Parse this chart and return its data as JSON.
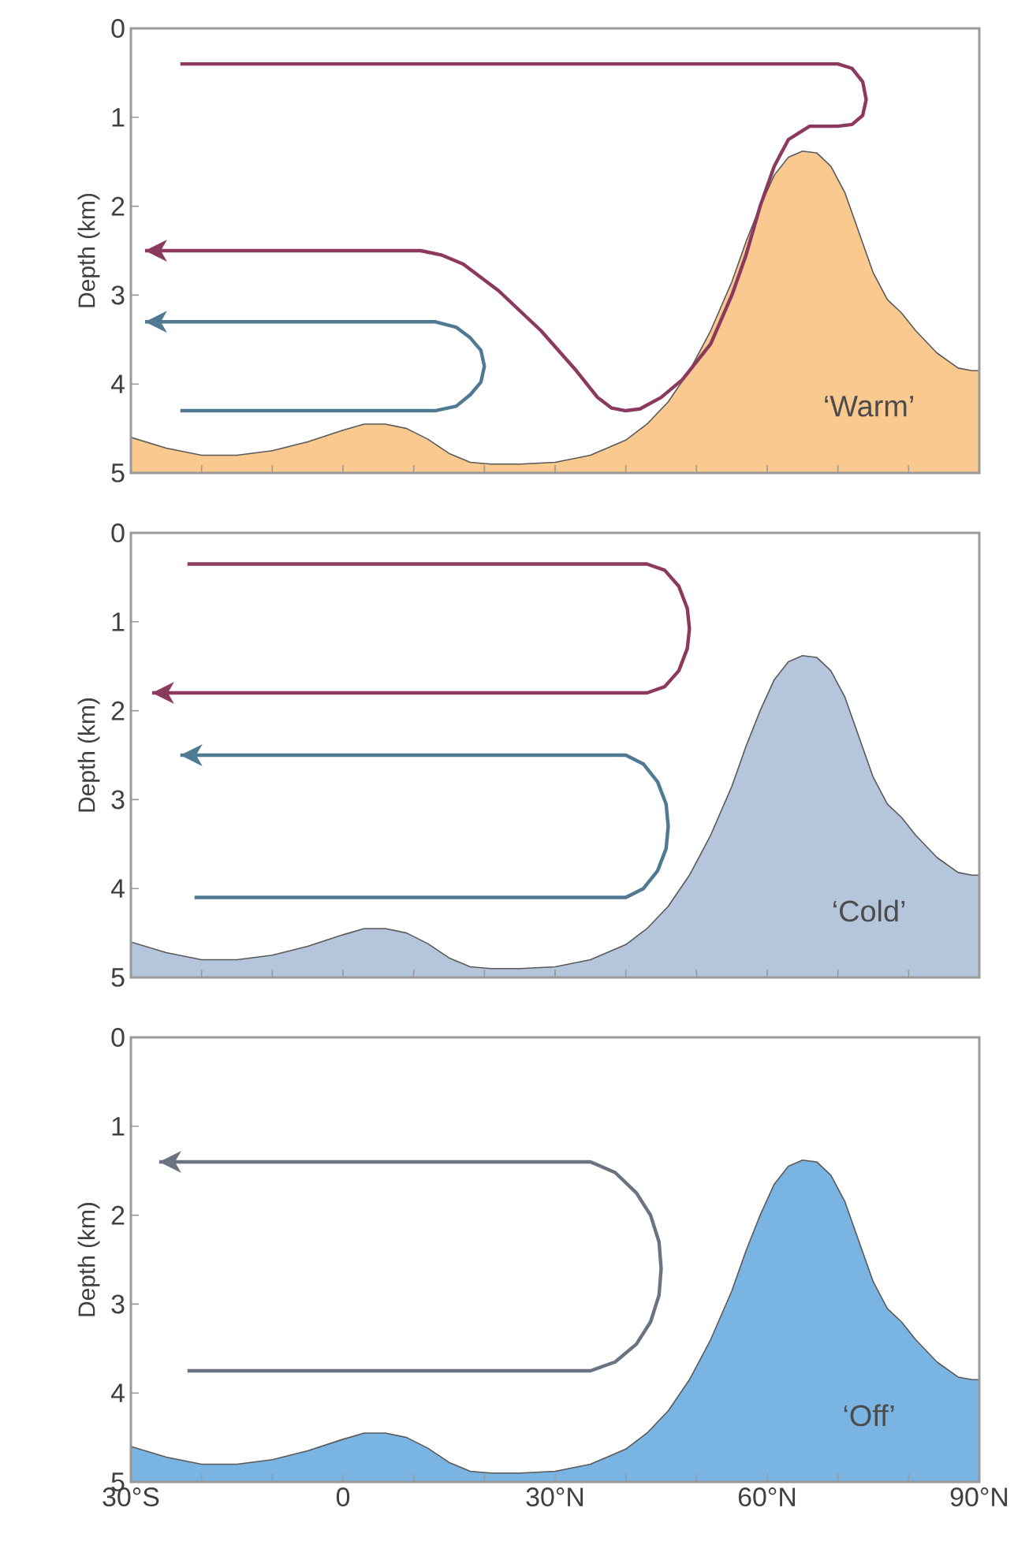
{
  "chart_data": [
    {
      "type": "area",
      "ylabel": "Depth (km)",
      "xlim": [
        -30,
        90
      ],
      "ylim": [
        5,
        0
      ],
      "yticks": [
        0,
        1,
        2,
        3,
        4,
        5
      ],
      "xticks": [
        {
          "value": -30,
          "label": null
        },
        {
          "value": -20,
          "label": null
        },
        {
          "value": -10,
          "label": null
        },
        {
          "value": 0,
          "label": null
        },
        {
          "value": 10,
          "label": null
        },
        {
          "value": 20,
          "label": null
        },
        {
          "value": 30,
          "label": null
        },
        {
          "value": 40,
          "label": null
        },
        {
          "value": 50,
          "label": null
        },
        {
          "value": 60,
          "label": null
        },
        {
          "value": 70,
          "label": null
        },
        {
          "value": 80,
          "label": null
        },
        {
          "value": 90,
          "label": null
        }
      ],
      "tick_labels": "y",
      "annotations": [
        "‘Warm’"
      ],
      "series": [
        {
          "type": "area",
          "color": "#f9c98f",
          "x": [
            -30,
            -30,
            -25,
            -20,
            -15,
            -10,
            -5,
            0,
            3,
            6,
            9,
            12,
            15,
            18,
            21,
            25,
            30,
            35,
            40,
            43,
            46,
            49,
            52,
            55,
            57,
            59,
            61,
            63,
            65,
            67,
            69,
            71,
            73,
            75,
            77,
            79,
            81,
            84,
            87,
            89,
            90,
            90
          ],
          "values": [
            5,
            4.6,
            4.72,
            4.8,
            4.8,
            4.75,
            4.65,
            4.52,
            4.45,
            4.45,
            4.5,
            4.62,
            4.78,
            4.88,
            4.9,
            4.9,
            4.88,
            4.8,
            4.63,
            4.45,
            4.2,
            3.85,
            3.4,
            2.85,
            2.4,
            2.0,
            1.65,
            1.45,
            1.38,
            1.4,
            1.55,
            1.85,
            2.3,
            2.75,
            3.05,
            3.2,
            3.4,
            3.65,
            3.82,
            3.85,
            3.85,
            5
          ]
        },
        {
          "type": "line",
          "color": "#8b3a5e",
          "x": [
            -23,
            70,
            72,
            73.5,
            74,
            73.5,
            72,
            70,
            66,
            63,
            61,
            59,
            57,
            55,
            52,
            48,
            45,
            42,
            40,
            38,
            36,
            33,
            28,
            22,
            17,
            14,
            11,
            6,
            0,
            -28
          ],
          "values": [
            0.4,
            0.4,
            0.45,
            0.6,
            0.8,
            0.98,
            1.08,
            1.1,
            1.1,
            1.25,
            1.55,
            2.0,
            2.55,
            3.0,
            3.55,
            3.95,
            4.15,
            4.28,
            4.3,
            4.27,
            4.15,
            3.85,
            3.4,
            2.95,
            2.65,
            2.55,
            2.5,
            2.5,
            2.5,
            2.5
          ]
        },
        {
          "type": "line",
          "color": "#4f7a92",
          "x": [
            -23,
            13,
            16,
            18,
            19.5,
            20,
            19.5,
            18,
            16,
            13,
            -28
          ],
          "values": [
            4.3,
            4.3,
            4.25,
            4.12,
            3.98,
            3.8,
            3.62,
            3.48,
            3.36,
            3.3,
            3.3
          ]
        }
      ]
    },
    {
      "type": "area",
      "ylabel": "Depth (km)",
      "xlim": [
        -30,
        90
      ],
      "ylim": [
        5,
        0
      ],
      "yticks": [
        0,
        1,
        2,
        3,
        4,
        5
      ],
      "xticks": [
        {
          "value": -30,
          "label": null
        },
        {
          "value": -20,
          "label": null
        },
        {
          "value": -10,
          "label": null
        },
        {
          "value": 0,
          "label": null
        },
        {
          "value": 10,
          "label": null
        },
        {
          "value": 20,
          "label": null
        },
        {
          "value": 30,
          "label": null
        },
        {
          "value": 40,
          "label": null
        },
        {
          "value": 50,
          "label": null
        },
        {
          "value": 60,
          "label": null
        },
        {
          "value": 70,
          "label": null
        },
        {
          "value": 80,
          "label": null
        },
        {
          "value": 90,
          "label": null
        }
      ],
      "tick_labels": "y",
      "annotations": [
        "‘Cold’"
      ],
      "series": [
        {
          "type": "area",
          "color": "#b5c6dc",
          "x": [
            -30,
            -30,
            -25,
            -20,
            -15,
            -10,
            -5,
            0,
            3,
            6,
            9,
            12,
            15,
            18,
            21,
            25,
            30,
            35,
            40,
            43,
            46,
            49,
            52,
            55,
            57,
            59,
            61,
            63,
            65,
            67,
            69,
            71,
            73,
            75,
            77,
            79,
            81,
            84,
            87,
            89,
            90,
            90
          ],
          "values": [
            5,
            4.6,
            4.72,
            4.8,
            4.8,
            4.75,
            4.65,
            4.52,
            4.45,
            4.45,
            4.5,
            4.62,
            4.78,
            4.88,
            4.9,
            4.9,
            4.88,
            4.8,
            4.63,
            4.45,
            4.2,
            3.85,
            3.4,
            2.85,
            2.4,
            2.0,
            1.65,
            1.45,
            1.38,
            1.4,
            1.55,
            1.85,
            2.3,
            2.75,
            3.05,
            3.2,
            3.4,
            3.65,
            3.82,
            3.85,
            3.85,
            5
          ]
        },
        {
          "type": "line",
          "color": "#8b3a5e",
          "x": [
            -22,
            43,
            45.5,
            47.5,
            48.7,
            49,
            48.7,
            47.5,
            45.5,
            43,
            -27
          ],
          "values": [
            0.35,
            0.35,
            0.42,
            0.6,
            0.85,
            1.08,
            1.3,
            1.55,
            1.73,
            1.8,
            1.8
          ]
        },
        {
          "type": "line",
          "color": "#4f7a92",
          "x": [
            -21,
            40,
            42.5,
            44.5,
            45.7,
            46,
            45.7,
            44.5,
            42.5,
            40,
            -23
          ],
          "values": [
            4.1,
            4.1,
            4.0,
            3.8,
            3.55,
            3.3,
            3.05,
            2.8,
            2.6,
            2.5,
            2.5
          ]
        }
      ]
    },
    {
      "type": "area",
      "ylabel": "Depth (km)",
      "xlim": [
        -30,
        90
      ],
      "ylim": [
        5,
        0
      ],
      "yticks": [
        0,
        1,
        2,
        3,
        4,
        5
      ],
      "xticks": [
        {
          "value": -30,
          "label": "30°S"
        },
        {
          "value": -20,
          "label": null
        },
        {
          "value": -10,
          "label": null
        },
        {
          "value": 0,
          "label": "0"
        },
        {
          "value": 10,
          "label": null
        },
        {
          "value": 20,
          "label": null
        },
        {
          "value": 30,
          "label": "30°N"
        },
        {
          "value": 40,
          "label": null
        },
        {
          "value": 50,
          "label": null
        },
        {
          "value": 60,
          "label": "60°N"
        },
        {
          "value": 70,
          "label": null
        },
        {
          "value": 80,
          "label": null
        },
        {
          "value": 90,
          "label": "90°N"
        }
      ],
      "annotations": [
        "‘Off’"
      ],
      "series": [
        {
          "type": "area",
          "color": "#79b4e3",
          "x": [
            -30,
            -30,
            -25,
            -20,
            -15,
            -10,
            -5,
            0,
            3,
            6,
            9,
            12,
            15,
            18,
            21,
            25,
            30,
            35,
            40,
            43,
            46,
            49,
            52,
            55,
            57,
            59,
            61,
            63,
            65,
            67,
            69,
            71,
            73,
            75,
            77,
            79,
            81,
            84,
            87,
            89,
            90,
            90
          ],
          "values": [
            5,
            4.6,
            4.72,
            4.8,
            4.8,
            4.75,
            4.65,
            4.52,
            4.45,
            4.45,
            4.5,
            4.62,
            4.78,
            4.88,
            4.9,
            4.9,
            4.88,
            4.8,
            4.63,
            4.45,
            4.2,
            3.85,
            3.4,
            2.85,
            2.4,
            2.0,
            1.65,
            1.45,
            1.38,
            1.4,
            1.55,
            1.85,
            2.3,
            2.75,
            3.05,
            3.2,
            3.4,
            3.65,
            3.82,
            3.85,
            3.85,
            5
          ]
        },
        {
          "type": "line",
          "color": "#6a7480",
          "x": [
            -22,
            35,
            38.5,
            41.5,
            43.5,
            44.7,
            45,
            44.7,
            43.5,
            41.5,
            38.5,
            35,
            -26
          ],
          "values": [
            3.75,
            3.75,
            3.65,
            3.45,
            3.2,
            2.9,
            2.6,
            2.3,
            2.0,
            1.75,
            1.52,
            1.4,
            1.4
          ]
        }
      ]
    }
  ]
}
